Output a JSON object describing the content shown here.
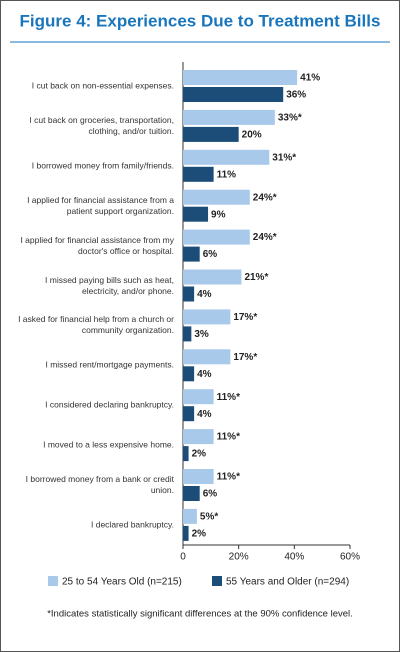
{
  "chart_data": {
    "type": "hbar",
    "title": "Figure 4: Experiences Due to Treatment Bills",
    "categories": [
      "I cut back on non-essential expenses.",
      "I cut back on groceries, transportation, clothing, and/or tuition.",
      "I borrowed money from family/friends.",
      "I applied for financial assistance from a patient support organization.",
      "I applied for financial assistance from my doctor's office or hospital.",
      "I missed paying bills such as heat, electricity, and/or phone.",
      "I asked for financial help from a church or community organization.",
      "I missed rent/mortgage payments.",
      "I considered declaring bankruptcy.",
      "I moved to a less expensive home.",
      "I borrowed money from a bank or credit union.",
      "I declared bankruptcy."
    ],
    "series": [
      {
        "name": "25 to 54 Years Old (n=215)",
        "color": "#a9c9eb",
        "values": [
          41,
          33,
          31,
          24,
          24,
          21,
          17,
          17,
          11,
          11,
          11,
          5
        ],
        "value_labels": [
          "41%",
          "33%*",
          "31%*",
          "24%*",
          "24%*",
          "21%*",
          "17%*",
          "17%*",
          "11%*",
          "11%*",
          "11%*",
          "5%*"
        ]
      },
      {
        "name": "55 Years and Older (n=294)",
        "color": "#1b4d78",
        "values": [
          36,
          20,
          11,
          9,
          6,
          4,
          3,
          4,
          4,
          2,
          6,
          2
        ],
        "value_labels": [
          "36%",
          "20%",
          "11%",
          "9%",
          "6%",
          "4%",
          "3%",
          "4%",
          "4%",
          "2%",
          "6%",
          "2%"
        ]
      }
    ],
    "xlim": [
      0,
      60
    ],
    "xticks": [
      0,
      {
        "value": 20,
        "label": "20%"
      },
      {
        "value": 40,
        "label": "40%"
      },
      {
        "value": 60,
        "label": "60%"
      }
    ],
    "note": "*Indicates statistically significant differences at the 90% confidence level."
  }
}
